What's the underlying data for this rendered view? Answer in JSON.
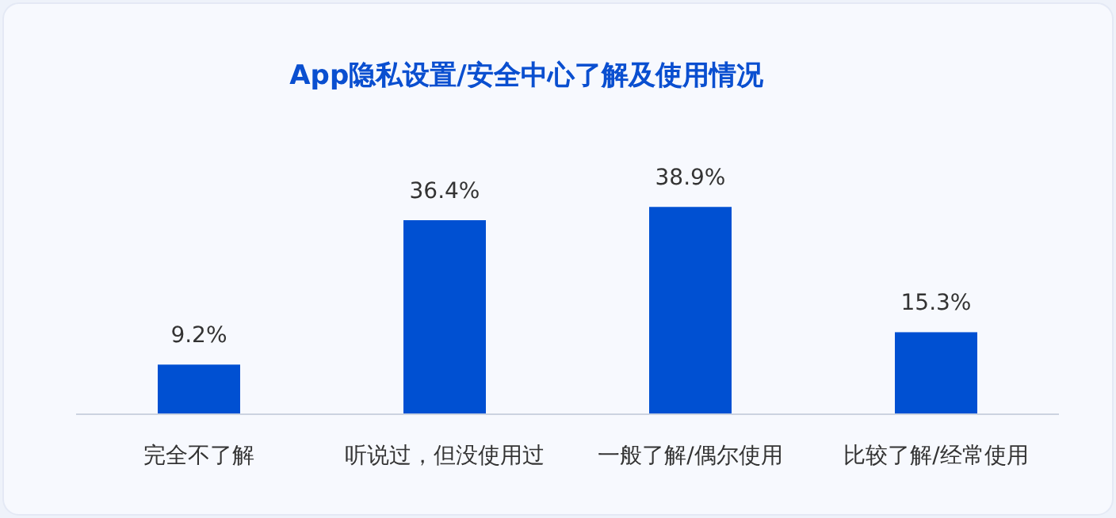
{
  "chart_data": {
    "type": "bar",
    "title": "App隐私设置/安全中心了解及使用情况",
    "categories": [
      "完全不了解",
      "听说过，但没使用过",
      "一般了解/偶尔使用",
      "比较了解/经常使用"
    ],
    "values": [
      9.2,
      36.4,
      38.9,
      15.3
    ],
    "value_labels": [
      "9.2%",
      "36.4%",
      "38.9%",
      "15.3%"
    ],
    "color": "#0050d2"
  }
}
